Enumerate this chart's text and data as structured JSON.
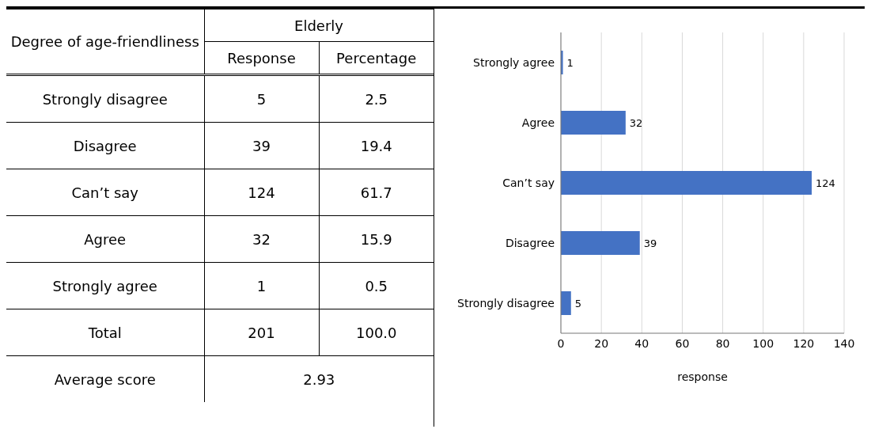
{
  "chart_data": [
    {
      "type": "other",
      "ylabel": "Degree of age-friendliness",
      "title": "Elderly",
      "categories": [
        "Strongly disagree",
        "Disagree",
        "Can’t say",
        "Agree",
        "Strongly agree",
        "Total"
      ],
      "series": [
        {
          "name": "Response",
          "values": [
            5,
            39,
            124,
            32,
            1,
            201
          ],
          "value_labels": [
            "5",
            "39",
            "124",
            "32",
            "1",
            "201"
          ]
        },
        {
          "name": "Percentage",
          "values": [
            2.5,
            19.4,
            61.7,
            15.9,
            0.5,
            100.0
          ],
          "value_labels": [
            "2.5",
            "19.4",
            "61.7",
            "15.9",
            "0.5",
            "100.0"
          ]
        }
      ],
      "annotations": [
        "Average score",
        "2.93"
      ]
    },
    {
      "type": "bar",
      "orientation": "horizontal",
      "categories": [
        "Strongly agree",
        "Agree",
        "Can’t say",
        "Disagree",
        "Strongly disagree"
      ],
      "values": [
        1,
        32,
        124,
        39,
        5
      ],
      "color": "#4472c4",
      "xlim": [
        0,
        140
      ],
      "xticks": [
        0,
        20,
        40,
        60,
        80,
        100,
        120,
        140
      ],
      "xlabel": "response",
      "grid": "x",
      "data_labels": true
    }
  ]
}
